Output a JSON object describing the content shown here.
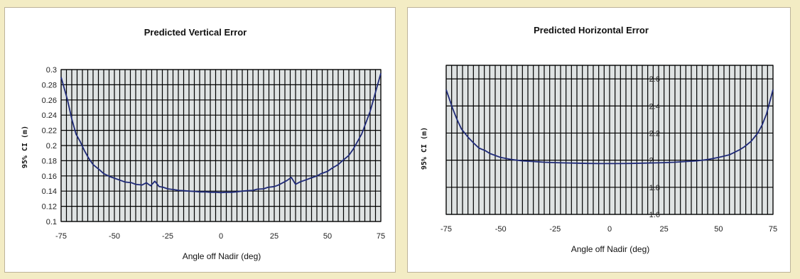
{
  "chart_data": [
    {
      "type": "line",
      "title": "Predicted Vertical Error",
      "xlabel": "Angle off Nadir (deg)",
      "ylabel": "95% CI (m)",
      "xlim": [
        -75,
        75
      ],
      "ylim": [
        0.1,
        0.3
      ],
      "x_ticks": [
        "-75",
        "-50",
        "-25",
        "0",
        "25",
        "50",
        "75"
      ],
      "y_ticks": [
        "0.1",
        "0.12",
        "0.14",
        "0.16",
        "0.18",
        "0.2",
        "0.22",
        "0.24",
        "0.26",
        "0.28",
        "0.3"
      ],
      "grid": true,
      "line_color": "#1f2a78",
      "plot_bg": "#dfe3e3",
      "grid_color": "#000000",
      "series": [
        {
          "x": [
            -75,
            -72,
            -70,
            -68,
            -66,
            -64,
            -62,
            -60,
            -57,
            -55,
            -52,
            -50,
            -47,
            -45,
            -42,
            -40,
            -37,
            -35,
            -33,
            -31,
            -29,
            -27,
            -25,
            -22,
            -20,
            -17,
            -15,
            -12,
            -10,
            -7,
            -5,
            -2,
            0,
            2,
            5,
            7,
            10,
            12,
            15,
            17,
            20,
            22,
            25,
            27,
            29,
            31,
            33,
            35,
            37,
            40,
            42,
            45,
            47,
            50,
            52,
            55,
            57,
            60,
            62,
            64,
            66,
            68,
            70,
            72,
            75
          ],
          "y": [
            0.29,
            0.26,
            0.235,
            0.215,
            0.205,
            0.193,
            0.183,
            0.175,
            0.168,
            0.163,
            0.159,
            0.157,
            0.154,
            0.152,
            0.151,
            0.149,
            0.148,
            0.151,
            0.147,
            0.153,
            0.146,
            0.145,
            0.143,
            0.142,
            0.141,
            0.1405,
            0.14,
            0.1395,
            0.139,
            0.139,
            0.1385,
            0.1385,
            0.138,
            0.1385,
            0.1385,
            0.139,
            0.14,
            0.1405,
            0.141,
            0.1425,
            0.143,
            0.145,
            0.146,
            0.148,
            0.151,
            0.154,
            0.158,
            0.149,
            0.152,
            0.155,
            0.157,
            0.16,
            0.163,
            0.166,
            0.17,
            0.175,
            0.18,
            0.187,
            0.195,
            0.205,
            0.215,
            0.23,
            0.245,
            0.265,
            0.295
          ]
        }
      ]
    },
    {
      "type": "line",
      "title": "Predicted Horizontal Error",
      "xlabel": "Angle off Nadir (deg)",
      "ylabel": "95% CI (m)",
      "xlim": [
        -75,
        75
      ],
      "ylim": [
        1.6,
        2.7
      ],
      "x_ticks": [
        "-75",
        "-50",
        "-25",
        "0",
        "25",
        "50",
        "75"
      ],
      "y_ticks": [
        "1.6",
        "1.8",
        "2",
        "2.2",
        "2.4",
        "2.6"
      ],
      "grid": true,
      "line_color": "#1f2a78",
      "plot_bg": "#dfe3e3",
      "grid_color": "#000000",
      "series": [
        {
          "x": [
            -75,
            -72,
            -70,
            -68,
            -65,
            -62,
            -60,
            -57,
            -55,
            -50,
            -45,
            -40,
            -35,
            -30,
            -25,
            -20,
            -15,
            -10,
            -5,
            0,
            5,
            10,
            15,
            20,
            25,
            30,
            35,
            40,
            45,
            50,
            55,
            57,
            60,
            62,
            65,
            68,
            70,
            72,
            75
          ],
          "y": [
            2.52,
            2.38,
            2.3,
            2.23,
            2.17,
            2.12,
            2.09,
            2.07,
            2.05,
            2.02,
            2.005,
            1.995,
            1.99,
            1.985,
            1.982,
            1.98,
            1.978,
            1.976,
            1.975,
            1.975,
            1.975,
            1.976,
            1.978,
            1.98,
            1.982,
            1.985,
            1.99,
            1.995,
            2.005,
            2.02,
            2.04,
            2.055,
            2.08,
            2.1,
            2.14,
            2.2,
            2.26,
            2.34,
            2.52
          ]
        }
      ]
    }
  ]
}
